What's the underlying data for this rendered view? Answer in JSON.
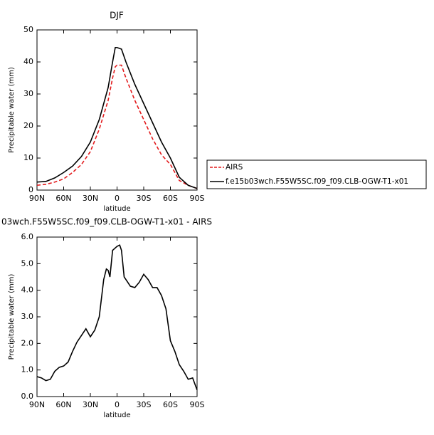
{
  "chart_data": [
    {
      "type": "line",
      "title": "DJF",
      "xlabel": "latitude",
      "ylabel": "Precipitable water (mm)",
      "x": [
        90,
        80,
        70,
        60,
        50,
        40,
        30,
        20,
        10,
        5,
        2,
        0,
        -5,
        -10,
        -20,
        -30,
        -40,
        -50,
        -60,
        -70,
        -80,
        -90
      ],
      "series": [
        {
          "name": "AIRS",
          "color": "#e31a1c",
          "dash": true,
          "values": [
            1.5,
            1.8,
            2.5,
            3.5,
            5.5,
            8,
            12,
            19,
            28,
            35,
            38.5,
            39,
            39,
            35,
            28,
            22,
            16,
            11,
            8,
            3,
            1.5,
            0.5
          ]
        },
        {
          "name": "f.e15b03wch.F55W5SC.f09_f09.CLB-OGW-T1-x01",
          "color": "#000000",
          "dash": false,
          "values": [
            2.5,
            2.7,
            3.8,
            5.5,
            7.5,
            10.5,
            15,
            22,
            32,
            40,
            44.5,
            44.5,
            44,
            40,
            33,
            27,
            21,
            15,
            10,
            4,
            1.5,
            0.5
          ]
        }
      ],
      "xlim": [
        90,
        -90
      ],
      "xticks": [
        {
          "value": 90,
          "label": "90N"
        },
        {
          "value": 60,
          "label": "60N"
        },
        {
          "value": 30,
          "label": "30N"
        },
        0,
        {
          "value": -30,
          "label": "30S"
        },
        {
          "value": -60,
          "label": "60S"
        },
        {
          "value": -90,
          "label": "90S"
        }
      ],
      "ylim": [
        0,
        50
      ],
      "yticks": [
        0,
        10,
        20,
        30,
        40,
        50
      ],
      "legend": "right"
    },
    {
      "type": "line",
      "title": "03wch.F55W5SC.f09_f09.CLB-OGW-T1-x01 - AIRS",
      "xlabel": "latitude",
      "ylabel": "Precipitable water (mm)",
      "x": [
        90,
        85,
        80,
        75,
        70,
        65,
        60,
        55,
        50,
        45,
        40,
        35,
        30,
        25,
        20,
        15,
        12,
        10,
        8,
        5,
        0,
        -3,
        -5,
        -8,
        -10,
        -15,
        -20,
        -25,
        -30,
        -35,
        -40,
        -45,
        -50,
        -55,
        -60,
        -65,
        -70,
        -75,
        -80,
        -85,
        -90
      ],
      "series": [
        {
          "color": "#000000",
          "dash": false,
          "values": [
            0.75,
            0.7,
            0.6,
            0.65,
            0.95,
            1.1,
            1.15,
            1.3,
            1.7,
            2.05,
            2.3,
            2.55,
            2.25,
            2.5,
            3.0,
            4.4,
            4.8,
            4.75,
            4.5,
            5.5,
            5.65,
            5.7,
            5.5,
            4.5,
            4.4,
            4.15,
            4.1,
            4.3,
            4.6,
            4.4,
            4.1,
            4.1,
            3.8,
            3.3,
            2.1,
            1.7,
            1.2,
            0.95,
            0.65,
            0.7,
            0.25
          ]
        }
      ],
      "xlim": [
        90,
        -90
      ],
      "xticks": [
        {
          "value": 90,
          "label": "90N"
        },
        {
          "value": 60,
          "label": "60N"
        },
        {
          "value": 30,
          "label": "30N"
        },
        0,
        {
          "value": -30,
          "label": "30S"
        },
        {
          "value": -60,
          "label": "60S"
        },
        {
          "value": -90,
          "label": "90S"
        }
      ],
      "ylim": [
        0,
        6
      ],
      "yticks": [
        {
          "value": 0,
          "label": "0.0"
        },
        {
          "value": 1,
          "label": "1.0"
        },
        {
          "value": 2,
          "label": "2.0"
        },
        {
          "value": 3,
          "label": "3.0"
        },
        {
          "value": 4,
          "label": "4.0"
        },
        {
          "value": 5,
          "label": "5.0"
        },
        {
          "value": 6,
          "label": "6.0"
        }
      ]
    }
  ]
}
